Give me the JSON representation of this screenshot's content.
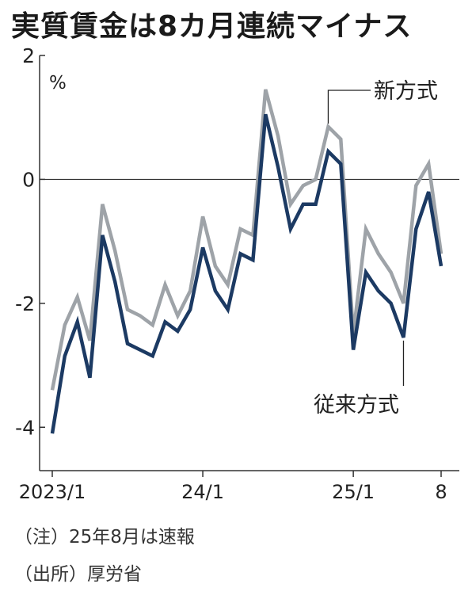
{
  "title": "実質賃金は8カ月連続マイナス",
  "notes": [
    "（注）25年8月は速報",
    "（出所）厚労省"
  ],
  "colors": {
    "new": "#9ea3a8",
    "old": "#1c3a63",
    "axis": "#333333",
    "zero": "#333333"
  },
  "chart_data": {
    "type": "line",
    "title": "実質賃金は8カ月連続マイナス",
    "xlabel": "",
    "ylabel": "%",
    "ylim": [
      -4.7,
      2
    ],
    "yticks": [
      2,
      0,
      -2,
      -4
    ],
    "ytick_labels": [
      "2",
      "0",
      "-2",
      "-4"
    ],
    "xticks": [
      {
        "index": 0,
        "label": "2023/1"
      },
      {
        "index": 12,
        "label": "24/1"
      },
      {
        "index": 24,
        "label": "25/1"
      },
      {
        "index": 31,
        "label": "8"
      }
    ],
    "x": [
      "2023/1",
      "2023/2",
      "2023/3",
      "2023/4",
      "2023/5",
      "2023/6",
      "2023/7",
      "2023/8",
      "2023/9",
      "2023/10",
      "2023/11",
      "2023/12",
      "2024/1",
      "2024/2",
      "2024/3",
      "2024/4",
      "2024/5",
      "2024/6",
      "2024/7",
      "2024/8",
      "2024/9",
      "2024/10",
      "2024/11",
      "2024/12",
      "2025/1",
      "2025/2",
      "2025/3",
      "2025/4",
      "2025/5",
      "2025/6",
      "2025/7",
      "2025/8"
    ],
    "grid": false,
    "series": [
      {
        "name": "新方式",
        "color": "#9ea3a8",
        "values": [
          -3.4,
          -2.35,
          -1.9,
          -2.6,
          -0.4,
          -1.15,
          -2.1,
          -2.2,
          -2.35,
          -1.7,
          -2.2,
          -1.8,
          -0.6,
          -1.4,
          -1.7,
          -0.8,
          -0.9,
          1.45,
          0.7,
          -0.4,
          -0.1,
          0.0,
          0.85,
          0.65,
          -2.5,
          -0.8,
          -1.2,
          -1.5,
          -2.0,
          -0.1,
          0.25,
          -1.2
        ]
      },
      {
        "name": "従来方式",
        "color": "#1c3a63",
        "values": [
          -4.1,
          -2.85,
          -2.3,
          -3.2,
          -0.9,
          -1.65,
          -2.65,
          -2.75,
          -2.85,
          -2.3,
          -2.45,
          -2.1,
          -1.1,
          -1.8,
          -2.1,
          -1.2,
          -1.3,
          1.05,
          0.2,
          -0.8,
          -0.4,
          -0.4,
          0.45,
          0.25,
          -2.75,
          -1.5,
          -1.8,
          -2.0,
          -2.55,
          -0.8,
          -0.2,
          -1.4
        ]
      }
    ]
  }
}
